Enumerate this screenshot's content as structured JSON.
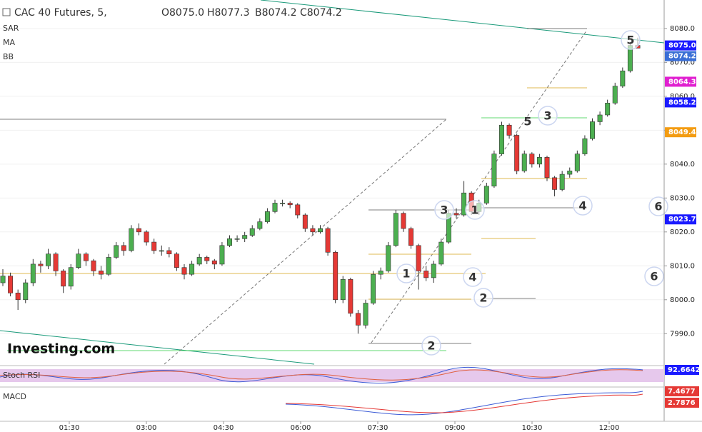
{
  "chart_data": {
    "type": "candlestick",
    "title": "CAC 40 Futures, 5,",
    "ohlc_labels": [
      "O8075.0",
      "H8077.3",
      "B8074.2",
      "C8074.2"
    ],
    "indicators": [
      "SAR",
      "MA",
      "BB"
    ],
    "logo": "Investing.com",
    "ylim": [
      7981,
      8088.4
    ],
    "yticks": [
      {
        "value": 8080,
        "label": "8080.0"
      },
      {
        "value": 8070,
        "label": "8070.0"
      },
      {
        "value": 8060,
        "label": "8060.0"
      },
      {
        "value": 8050,
        "label": "8050.0"
      },
      {
        "value": 8040,
        "label": "8040.0"
      },
      {
        "value": 8030,
        "label": "8030.0"
      },
      {
        "value": 8020,
        "label": "8020.0"
      },
      {
        "value": 8010,
        "label": "8010.0"
      },
      {
        "value": 8000,
        "label": "8000.0"
      },
      {
        "value": 7990,
        "label": "7990.0"
      }
    ],
    "xticks": [
      "01:30",
      "03:00",
      "04:30",
      "06:00",
      "07:30",
      "09:00",
      "10:30",
      "12:00"
    ],
    "up_color": "#4caf50",
    "down_color": "#e53935",
    "candles": [
      [
        8005,
        8009,
        8004,
        8007
      ],
      [
        8007,
        8008,
        8001,
        8002
      ],
      [
        8002,
        8003,
        7997,
        8000
      ],
      [
        8000,
        8006,
        7999,
        8005
      ],
      [
        8005,
        8012,
        8004,
        8010.5
      ],
      [
        8010.5,
        8011.5,
        8008,
        8010
      ],
      [
        8010,
        8015,
        8009,
        8013.5
      ],
      [
        8013.5,
        8014,
        8007,
        8008.5
      ],
      [
        8008.5,
        8009,
        8002,
        8004
      ],
      [
        8004,
        8010.5,
        8003,
        8009.5
      ],
      [
        8009.5,
        8015,
        8009,
        8013.5
      ],
      [
        8013.5,
        8014,
        8010,
        8011.5
      ],
      [
        8011.5,
        8012,
        8007,
        8008.5
      ],
      [
        8008.5,
        8010,
        8006,
        8007.5
      ],
      [
        8007.5,
        8013.5,
        8007,
        8012.5
      ],
      [
        8012.5,
        8017,
        8012,
        8016
      ],
      [
        8016,
        8017,
        8013,
        8014.5
      ],
      [
        8014.5,
        8022,
        8014,
        8021
      ],
      [
        8021,
        8022.5,
        8019,
        8020
      ],
      [
        8020,
        8020.5,
        8016,
        8017
      ],
      [
        8017,
        8018,
        8013.5,
        8014.5
      ],
      [
        8014.5,
        8016,
        8013,
        8014.5
      ],
      [
        8014.5,
        8015.5,
        8012.5,
        8013.5
      ],
      [
        8013.5,
        8014,
        8008.5,
        8009.5
      ],
      [
        8009.5,
        8010.5,
        8006,
        8007.5
      ],
      [
        8007.5,
        8011.5,
        8007,
        8010.5
      ],
      [
        8010.5,
        8013.5,
        8010,
        8012.5
      ],
      [
        8012.5,
        8013,
        8010.5,
        8011.5
      ],
      [
        8011.5,
        8012,
        8009,
        8010.5
      ],
      [
        8010.5,
        8017,
        8010,
        8016
      ],
      [
        8016,
        8019,
        8015.5,
        8018
      ],
      [
        8018,
        8019,
        8017,
        8018
      ],
      [
        8018,
        8020,
        8017,
        8019
      ],
      [
        8019,
        8022,
        8018.5,
        8021
      ],
      [
        8021,
        8024,
        8020.5,
        8023
      ],
      [
        8023,
        8027,
        8022.5,
        8026
      ],
      [
        8026,
        8029.5,
        8025.5,
        8028.5
      ],
      [
        8028.5,
        8029.5,
        8027.5,
        8028.5
      ],
      [
        8028.5,
        8029,
        8027,
        8028
      ],
      [
        8028,
        8028.5,
        8024,
        8025
      ],
      [
        8025,
        8025.5,
        8020,
        8021
      ],
      [
        8021,
        8022,
        8019,
        8020
      ],
      [
        8020,
        8022,
        8019.5,
        8021
      ],
      [
        8021,
        8021.5,
        8013,
        8014
      ],
      [
        8014,
        8014.5,
        7999,
        8000
      ],
      [
        8000,
        8007,
        7999,
        8006
      ],
      [
        8006,
        8006.5,
        7995,
        7996
      ],
      [
        7996,
        7997,
        7990,
        7992.5
      ],
      [
        7992.5,
        8000,
        7991.5,
        7999
      ],
      [
        7999,
        8008.5,
        7998.5,
        8007.5
      ],
      [
        8007.5,
        8009.5,
        8006,
        8008.5
      ],
      [
        8008.5,
        8017,
        8008,
        8016
      ],
      [
        8016,
        8026.5,
        8015.5,
        8025.5
      ],
      [
        8025.5,
        8026,
        8020,
        8021
      ],
      [
        8021,
        8021.5,
        8015,
        8016
      ],
      [
        8016,
        8016.5,
        8003,
        8008.5
      ],
      [
        8008.5,
        8010,
        8005.5,
        8006.5
      ],
      [
        8006.5,
        8011.5,
        8005,
        8010.5
      ],
      [
        8010.5,
        8018,
        8010,
        8017
      ],
      [
        8017,
        8026.5,
        8016.5,
        8025.5
      ],
      [
        8025.5,
        8027,
        8024,
        8025
      ],
      [
        8025,
        8035,
        8024.5,
        8031.5
      ],
      [
        8031.5,
        8032,
        8025,
        8026
      ],
      [
        8026,
        8029.5,
        8025,
        8028.5
      ],
      [
        8028.5,
        8034.5,
        8028,
        8033.5
      ],
      [
        8033.5,
        8044,
        8033,
        8043
      ],
      [
        8043,
        8052.5,
        8042.5,
        8051.5
      ],
      [
        8051.5,
        8052,
        8047.5,
        8048.5
      ],
      [
        8048.5,
        8049,
        8037,
        8038
      ],
      [
        8038,
        8044,
        8037.5,
        8043
      ],
      [
        8043,
        8043.5,
        8039,
        8040
      ],
      [
        8040,
        8043,
        8039,
        8042
      ],
      [
        8042,
        8042.5,
        8035,
        8036
      ],
      [
        8036,
        8036.5,
        8030.5,
        8032.5
      ],
      [
        8032.5,
        8038,
        8032,
        8037
      ],
      [
        8037,
        8039,
        8036,
        8038
      ],
      [
        8038,
        8044,
        8037.5,
        8043
      ],
      [
        8043,
        8048.5,
        8042.5,
        8047.5
      ],
      [
        8047.5,
        8053.5,
        8047,
        8052.5
      ],
      [
        8052.5,
        8055.5,
        8051.5,
        8054.5
      ],
      [
        8054.5,
        8059,
        8054,
        8058
      ],
      [
        8058,
        8064,
        8057.5,
        8063
      ],
      [
        8063,
        8068.5,
        8062.5,
        8067.5
      ],
      [
        8067.5,
        8076,
        8067,
        8075
      ],
      [
        8075,
        8077.3,
        8074.2,
        8074.2
      ]
    ],
    "price_tags": [
      {
        "value": 8075.0,
        "label": "8075.0",
        "color": "#1a1aff"
      },
      {
        "value": 8074.2,
        "label": "8074.2",
        "color": "#3b6fd6"
      },
      {
        "value": 8064.3,
        "label": "8064.3",
        "color": "#e020d0"
      },
      {
        "value": 8058.2,
        "label": "8058.2",
        "color": "#1a1aff"
      },
      {
        "value": 8049.4,
        "label": "8049.4",
        "color": "#f39c12"
      },
      {
        "value": 8023.7,
        "label": "8023.7",
        "color": "#1a1aff"
      }
    ],
    "wave_labels": [
      {
        "text": "5",
        "color": "#111"
      },
      {
        "text": "3",
        "color": "#111"
      },
      {
        "text": "5",
        "color": "#e00"
      },
      {
        "text": "1",
        "color": "#e00"
      },
      {
        "text": "2",
        "color": "#e00"
      },
      {
        "text": "3",
        "color": "#e00"
      },
      {
        "text": "1",
        "color": "#111"
      },
      {
        "text": "4",
        "color": "#e00"
      },
      {
        "text": "2",
        "color": "#111"
      },
      {
        "text": "4",
        "color": "#111"
      },
      {
        "text": "6",
        "color": "#111"
      },
      {
        "text": "6",
        "color": "#e00"
      }
    ],
    "panels": [
      {
        "name": "Stoch RSI",
        "tags": [
          {
            "label": "92.6642",
            "color": "#1a1aff"
          }
        ]
      },
      {
        "name": "MACD",
        "tags": [
          {
            "label": "7.4677",
            "color": "#e53935"
          },
          {
            "label": "2.7876",
            "color": "#e53935"
          }
        ]
      }
    ]
  }
}
